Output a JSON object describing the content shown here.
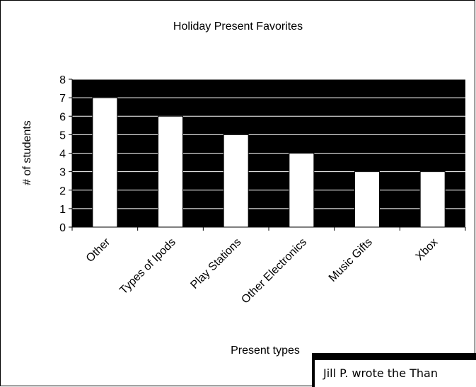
{
  "chart_data": {
    "type": "bar",
    "title": "Holiday Present Favorites",
    "xlabel": "Present types",
    "ylabel": "# of students",
    "categories": [
      "Other",
      "Types of Ipods",
      "Play Stations",
      "Other Electronics",
      "Music Gifts",
      "Xbox"
    ],
    "values": [
      7,
      6,
      5,
      4,
      3,
      3
    ],
    "ylim": [
      0,
      8
    ],
    "yticks": [
      "0",
      "1",
      "2",
      "3",
      "4",
      "5",
      "6",
      "7",
      "8"
    ],
    "grid": true,
    "legend": "none",
    "colors": {
      "plot_background": "#000000",
      "bar_fill": "#ffffff",
      "gridline": "#ffffff"
    }
  },
  "note": {
    "text": "Jill P. wrote the Than"
  }
}
